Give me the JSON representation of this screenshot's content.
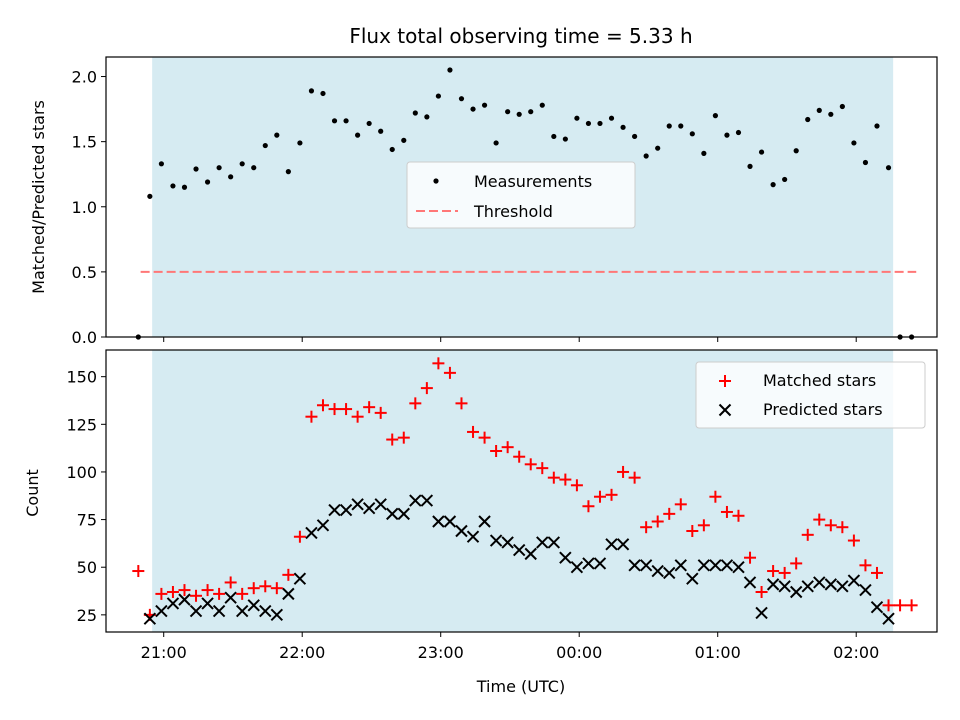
{
  "chart_data": [
    {
      "type": "scatter",
      "title": "Flux total observing time = 5.33 h",
      "xlabel": "",
      "ylabel": "Matched/Predicted stars",
      "ylim": [
        0,
        2.15
      ],
      "yticks": [
        "0.0",
        "0.5",
        "1.0",
        "1.5",
        "2.0"
      ],
      "shaded_interval": {
        "start": "20:55",
        "end": "02:16",
        "color": "#add8e6"
      },
      "legend": {
        "placement": "center",
        "entries": [
          "Measurements",
          "Threshold"
        ]
      },
      "threshold": {
        "name": "Threshold",
        "value": 0.5,
        "x_start": "20:50",
        "x_end": "02:26",
        "color": "#ff7777",
        "style": "dashed"
      },
      "series": [
        {
          "name": "Measurements",
          "color": "#000000",
          "marker": "dot",
          "x": [
            "20:49",
            "20:54",
            "20:59",
            "21:04",
            "21:09",
            "21:14",
            "21:19",
            "21:24",
            "21:29",
            "21:34",
            "21:39",
            "21:44",
            "21:49",
            "21:54",
            "21:59",
            "22:04",
            "22:09",
            "22:14",
            "22:19",
            "22:24",
            "22:29",
            "22:34",
            "22:39",
            "22:44",
            "22:49",
            "22:54",
            "22:59",
            "23:04",
            "23:09",
            "23:14",
            "23:19",
            "23:24",
            "23:29",
            "23:34",
            "23:39",
            "23:44",
            "23:49",
            "23:54",
            "23:59",
            "00:04",
            "00:09",
            "00:14",
            "00:19",
            "00:24",
            "00:29",
            "00:34",
            "00:39",
            "00:44",
            "00:49",
            "00:54",
            "00:59",
            "01:04",
            "01:09",
            "01:14",
            "01:19",
            "01:24",
            "01:29",
            "01:34",
            "01:39",
            "01:44",
            "01:49",
            "01:54",
            "01:59",
            "02:04",
            "02:09",
            "02:14",
            "02:19",
            "02:24"
          ],
          "y": [
            0.0,
            1.08,
            1.33,
            1.16,
            1.15,
            1.29,
            1.19,
            1.3,
            1.23,
            1.33,
            1.3,
            1.47,
            1.55,
            1.27,
            1.49,
            1.89,
            1.87,
            1.66,
            1.66,
            1.55,
            1.64,
            1.58,
            1.44,
            1.51,
            1.72,
            1.69,
            1.85,
            2.05,
            1.83,
            1.75,
            1.78,
            1.49,
            1.73,
            1.71,
            1.73,
            1.78,
            1.54,
            1.52,
            1.68,
            1.64,
            1.64,
            1.68,
            1.61,
            1.54,
            1.39,
            1.45,
            1.62,
            1.62,
            1.56,
            1.41,
            1.7,
            1.55,
            1.57,
            1.31,
            1.42,
            1.17,
            1.21,
            1.43,
            1.67,
            1.74,
            1.71,
            1.77,
            1.49,
            1.34,
            1.62,
            1.3,
            0.0,
            0.0
          ]
        }
      ]
    },
    {
      "type": "scatter",
      "title": "",
      "xlabel": "Time (UTC)",
      "ylabel": "Count",
      "ylim": [
        16,
        164
      ],
      "yticks": [
        "25",
        "50",
        "75",
        "100",
        "125",
        "150"
      ],
      "xlim": [
        "20:35",
        "02:35"
      ],
      "xticks": [
        "21:00",
        "22:00",
        "23:00",
        "00:00",
        "01:00",
        "02:00"
      ],
      "shaded_interval": {
        "start": "20:55",
        "end": "02:16",
        "color": "#add8e6"
      },
      "legend": {
        "placement": "top-right",
        "entries": [
          "Matched stars",
          "Predicted stars"
        ]
      },
      "series": [
        {
          "name": "Matched stars",
          "color": "#ff0000",
          "marker": "plus",
          "x": [
            "20:49",
            "20:54",
            "20:59",
            "21:04",
            "21:09",
            "21:14",
            "21:19",
            "21:24",
            "21:29",
            "21:34",
            "21:39",
            "21:44",
            "21:49",
            "21:54",
            "21:59",
            "22:04",
            "22:09",
            "22:14",
            "22:19",
            "22:24",
            "22:29",
            "22:34",
            "22:39",
            "22:44",
            "22:49",
            "22:54",
            "22:59",
            "23:04",
            "23:09",
            "23:14",
            "23:19",
            "23:24",
            "23:29",
            "23:34",
            "23:39",
            "23:44",
            "23:49",
            "23:54",
            "23:59",
            "00:04",
            "00:09",
            "00:14",
            "00:19",
            "00:24",
            "00:29",
            "00:34",
            "00:39",
            "00:44",
            "00:49",
            "00:54",
            "00:59",
            "01:04",
            "01:09",
            "01:14",
            "01:19",
            "01:24",
            "01:29",
            "01:34",
            "01:39",
            "01:44",
            "01:49",
            "01:54",
            "01:59",
            "02:04",
            "02:09",
            "02:14",
            "02:19",
            "02:24"
          ],
          "y": [
            48,
            25,
            36,
            37,
            38,
            35,
            38,
            36,
            42,
            36,
            39,
            40,
            39,
            46,
            66,
            129,
            135,
            133,
            133,
            129,
            134,
            131,
            117,
            118,
            136,
            144,
            157,
            152,
            136,
            121,
            118,
            111,
            113,
            108,
            104,
            102,
            97,
            96,
            93,
            82,
            87,
            88,
            100,
            97,
            71,
            74,
            78,
            83,
            69,
            72,
            87,
            79,
            77,
            55,
            37,
            48,
            47,
            52,
            67,
            75,
            72,
            71,
            64,
            51,
            47,
            30,
            30,
            30
          ]
        },
        {
          "name": "Predicted stars",
          "color": "#000000",
          "marker": "x",
          "x": [
            "20:54",
            "20:59",
            "21:04",
            "21:09",
            "21:14",
            "21:19",
            "21:24",
            "21:29",
            "21:34",
            "21:39",
            "21:44",
            "21:49",
            "21:54",
            "21:59",
            "22:04",
            "22:09",
            "22:14",
            "22:19",
            "22:24",
            "22:29",
            "22:34",
            "22:39",
            "22:44",
            "22:49",
            "22:54",
            "22:59",
            "23:04",
            "23:09",
            "23:14",
            "23:19",
            "23:24",
            "23:29",
            "23:34",
            "23:39",
            "23:44",
            "23:49",
            "23:54",
            "23:59",
            "00:04",
            "00:09",
            "00:14",
            "00:19",
            "00:24",
            "00:29",
            "00:34",
            "00:39",
            "00:44",
            "00:49",
            "00:54",
            "00:59",
            "01:04",
            "01:09",
            "01:14",
            "01:19",
            "01:24",
            "01:29",
            "01:34",
            "01:39",
            "01:44",
            "01:49",
            "01:54",
            "01:59",
            "02:04",
            "02:09",
            "02:14"
          ],
          "y": [
            23,
            27,
            31,
            33,
            27,
            31,
            27,
            34,
            27,
            30,
            27,
            25,
            36,
            44,
            68,
            72,
            80,
            80,
            83,
            81,
            83,
            78,
            78,
            85,
            85,
            74,
            74,
            69,
            66,
            74,
            64,
            63,
            59,
            57,
            63,
            63,
            55,
            50,
            52,
            52,
            62,
            62,
            51,
            51,
            48,
            47,
            51,
            44,
            51,
            51,
            51,
            50,
            42,
            26,
            41,
            40,
            37,
            40,
            42,
            41,
            40,
            43,
            38,
            29,
            23
          ]
        }
      ]
    }
  ]
}
